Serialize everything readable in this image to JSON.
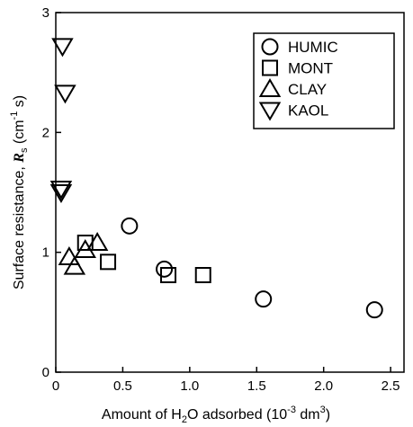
{
  "chart_data": {
    "type": "scatter",
    "x_label": [
      "Amount of H",
      "2",
      "O adsorbed (10",
      "-3",
      " dm",
      "3",
      ")"
    ],
    "y_label": [
      "Surface resistance, ",
      "R",
      "s",
      " (cm",
      "-1",
      " s)"
    ],
    "xlim": [
      0,
      2.6
    ],
    "ylim": [
      0,
      3
    ],
    "xticks": [
      0,
      0.5,
      {
        "value": 1,
        "label": "1.0"
      },
      1.5,
      {
        "value": 2,
        "label": "2.0"
      },
      2.5
    ],
    "yticks": [
      0,
      1,
      2,
      3
    ],
    "legend": "upper right",
    "series": [
      {
        "name": "HUMIC",
        "marker": "circle",
        "color": "#000000",
        "x": [
          0.55,
          0.81,
          1.55,
          2.38
        ],
        "values": [
          1.22,
          0.86,
          0.61,
          0.52
        ]
      },
      {
        "name": "MONT",
        "marker": "square",
        "color": "#000000",
        "x": [
          0.22,
          0.39,
          0.84,
          1.1
        ],
        "values": [
          1.08,
          0.92,
          0.81,
          0.81
        ]
      },
      {
        "name": "CLAY",
        "marker": "triangle-up",
        "color": "#000000",
        "x": [
          0.1,
          0.14,
          0.22,
          0.31
        ],
        "values": [
          0.96,
          0.88,
          1.02,
          1.08
        ]
      },
      {
        "name": "KAOL",
        "marker": "triangle-down",
        "color": "#000000",
        "x": [
          0.05,
          0.07,
          0.04,
          0.04
        ],
        "values": [
          2.72,
          2.33,
          1.53,
          1.5
        ]
      }
    ]
  }
}
